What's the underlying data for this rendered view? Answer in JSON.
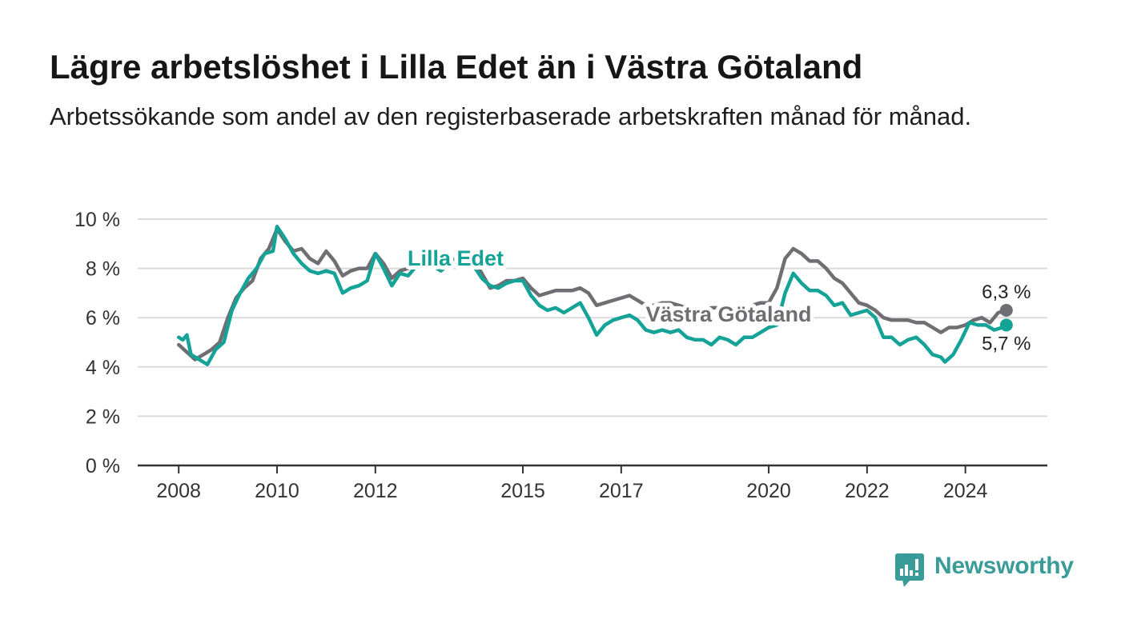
{
  "chart_data": {
    "type": "line",
    "title": "Lägre arbetslöshet i Lilla Edet än i Västra Götaland",
    "subtitle": "Arbetssökande som andel av den registerbaserade arbetskraften månad för månad.",
    "xlabel": "",
    "ylabel": "",
    "ylim": [
      0,
      10
    ],
    "xlim": [
      "2007-03",
      "2025-09"
    ],
    "grid": true,
    "legend": "direct labels on lines",
    "y_ticks": [
      {
        "value": 10,
        "label": "10 %"
      },
      {
        "value": 8,
        "label": "8 %"
      },
      {
        "value": 6,
        "label": "6 %"
      },
      {
        "value": 4,
        "label": "4 %"
      },
      {
        "value": 2,
        "label": "2 %"
      },
      {
        "value": 0,
        "label": "0 %"
      }
    ],
    "x_ticks": [
      {
        "value": "2008-01",
        "label": "2008"
      },
      {
        "value": "2010-01",
        "label": "2010"
      },
      {
        "value": "2012-01",
        "label": "2012"
      },
      {
        "value": "2015-01",
        "label": "2015"
      },
      {
        "value": "2017-01",
        "label": "2017"
      },
      {
        "value": "2020-01",
        "label": "2020"
      },
      {
        "value": "2022-01",
        "label": "2022"
      },
      {
        "value": "2024-01",
        "label": "2024"
      }
    ],
    "series": [
      {
        "name": "Lilla Edet",
        "color": "#14a396",
        "end_label": "5,7 %",
        "end_value": 5.7,
        "points": [
          [
            "2008-01",
            5.2
          ],
          [
            "2008-02",
            5.1
          ],
          [
            "2008-03",
            5.3
          ],
          [
            "2008-04",
            4.5
          ],
          [
            "2008-06",
            4.3
          ],
          [
            "2008-08",
            4.1
          ],
          [
            "2008-10",
            4.7
          ],
          [
            "2008-12",
            5.0
          ],
          [
            "2009-02",
            6.3
          ],
          [
            "2009-04",
            7.0
          ],
          [
            "2009-06",
            7.6
          ],
          [
            "2009-08",
            8.0
          ],
          [
            "2009-10",
            8.6
          ],
          [
            "2009-12",
            8.7
          ],
          [
            "2010-01",
            9.7
          ],
          [
            "2010-03",
            9.2
          ],
          [
            "2010-05",
            8.6
          ],
          [
            "2010-07",
            8.2
          ],
          [
            "2010-09",
            7.9
          ],
          [
            "2010-11",
            7.8
          ],
          [
            "2011-01",
            7.9
          ],
          [
            "2011-03",
            7.8
          ],
          [
            "2011-05",
            7.0
          ],
          [
            "2011-07",
            7.2
          ],
          [
            "2011-09",
            7.3
          ],
          [
            "2011-11",
            7.5
          ],
          [
            "2012-01",
            8.6
          ],
          [
            "2012-03",
            8.0
          ],
          [
            "2012-05",
            7.3
          ],
          [
            "2012-07",
            7.8
          ],
          [
            "2012-09",
            7.7
          ],
          [
            "2012-11",
            8.1
          ],
          [
            "2013-01",
            8.2
          ],
          [
            "2013-03",
            8.1
          ],
          [
            "2013-05",
            7.9
          ],
          [
            "2013-07",
            8.2
          ],
          [
            "2013-09",
            8.3
          ],
          [
            "2013-11",
            8.2
          ],
          [
            "2014-01",
            8.1
          ],
          [
            "2014-03",
            7.6
          ],
          [
            "2014-05",
            7.3
          ],
          [
            "2014-07",
            7.2
          ],
          [
            "2014-09",
            7.4
          ],
          [
            "2014-11",
            7.5
          ],
          [
            "2015-01",
            7.5
          ],
          [
            "2015-03",
            6.9
          ],
          [
            "2015-05",
            6.5
          ],
          [
            "2015-07",
            6.3
          ],
          [
            "2015-09",
            6.4
          ],
          [
            "2015-11",
            6.2
          ],
          [
            "2016-01",
            6.4
          ],
          [
            "2016-03",
            6.6
          ],
          [
            "2016-05",
            6.0
          ],
          [
            "2016-07",
            5.3
          ],
          [
            "2016-09",
            5.7
          ],
          [
            "2016-11",
            5.9
          ],
          [
            "2017-01",
            6.0
          ],
          [
            "2017-03",
            6.1
          ],
          [
            "2017-05",
            5.9
          ],
          [
            "2017-07",
            5.5
          ],
          [
            "2017-09",
            5.4
          ],
          [
            "2017-11",
            5.5
          ],
          [
            "2018-01",
            5.4
          ],
          [
            "2018-03",
            5.5
          ],
          [
            "2018-05",
            5.2
          ],
          [
            "2018-07",
            5.1
          ],
          [
            "2018-09",
            5.1
          ],
          [
            "2018-11",
            4.9
          ],
          [
            "2019-01",
            5.2
          ],
          [
            "2019-03",
            5.1
          ],
          [
            "2019-05",
            4.9
          ],
          [
            "2019-07",
            5.2
          ],
          [
            "2019-09",
            5.2
          ],
          [
            "2019-11",
            5.4
          ],
          [
            "2020-01",
            5.6
          ],
          [
            "2020-03",
            5.7
          ],
          [
            "2020-05",
            7.0
          ],
          [
            "2020-07",
            7.8
          ],
          [
            "2020-09",
            7.4
          ],
          [
            "2020-11",
            7.1
          ],
          [
            "2021-01",
            7.1
          ],
          [
            "2021-03",
            6.9
          ],
          [
            "2021-05",
            6.5
          ],
          [
            "2021-07",
            6.6
          ],
          [
            "2021-09",
            6.1
          ],
          [
            "2021-11",
            6.2
          ],
          [
            "2022-01",
            6.3
          ],
          [
            "2022-03",
            6.0
          ],
          [
            "2022-05",
            5.2
          ],
          [
            "2022-07",
            5.2
          ],
          [
            "2022-09",
            4.9
          ],
          [
            "2022-11",
            5.1
          ],
          [
            "2023-01",
            5.2
          ],
          [
            "2023-03",
            4.9
          ],
          [
            "2023-05",
            4.5
          ],
          [
            "2023-07",
            4.4
          ],
          [
            "2023-08",
            4.2
          ],
          [
            "2023-10",
            4.5
          ],
          [
            "2023-12",
            5.1
          ],
          [
            "2024-02",
            5.8
          ],
          [
            "2024-04",
            5.7
          ],
          [
            "2024-06",
            5.7
          ],
          [
            "2024-08",
            5.5
          ],
          [
            "2024-10",
            5.6
          ],
          [
            "2024-11",
            5.7
          ]
        ]
      },
      {
        "name": "Västra Götaland",
        "color": "#6e6e73",
        "end_label": "6,3 %",
        "end_value": 6.3,
        "points": [
          [
            "2008-01",
            4.9
          ],
          [
            "2008-03",
            4.6
          ],
          [
            "2008-05",
            4.3
          ],
          [
            "2008-07",
            4.5
          ],
          [
            "2008-09",
            4.7
          ],
          [
            "2008-11",
            5.0
          ],
          [
            "2009-01",
            6.0
          ],
          [
            "2009-03",
            6.8
          ],
          [
            "2009-05",
            7.2
          ],
          [
            "2009-07",
            7.5
          ],
          [
            "2009-09",
            8.4
          ],
          [
            "2009-11",
            8.8
          ],
          [
            "2010-01",
            9.6
          ],
          [
            "2010-03",
            9.1
          ],
          [
            "2010-05",
            8.7
          ],
          [
            "2010-07",
            8.8
          ],
          [
            "2010-09",
            8.4
          ],
          [
            "2010-11",
            8.2
          ],
          [
            "2011-01",
            8.7
          ],
          [
            "2011-03",
            8.3
          ],
          [
            "2011-05",
            7.7
          ],
          [
            "2011-07",
            7.9
          ],
          [
            "2011-09",
            8.0
          ],
          [
            "2011-11",
            8.0
          ],
          [
            "2012-01",
            8.6
          ],
          [
            "2012-03",
            8.2
          ],
          [
            "2012-05",
            7.6
          ],
          [
            "2012-07",
            7.9
          ],
          [
            "2012-09",
            8.0
          ],
          [
            "2012-11",
            8.2
          ],
          [
            "2013-01",
            8.4
          ],
          [
            "2013-03",
            8.2
          ],
          [
            "2013-05",
            8.0
          ],
          [
            "2013-07",
            8.3
          ],
          [
            "2013-09",
            8.4
          ],
          [
            "2013-11",
            8.3
          ],
          [
            "2014-01",
            8.3
          ],
          [
            "2014-03",
            7.8
          ],
          [
            "2014-05",
            7.2
          ],
          [
            "2014-07",
            7.3
          ],
          [
            "2014-09",
            7.5
          ],
          [
            "2014-11",
            7.5
          ],
          [
            "2015-01",
            7.6
          ],
          [
            "2015-03",
            7.2
          ],
          [
            "2015-05",
            6.9
          ],
          [
            "2015-07",
            7.0
          ],
          [
            "2015-09",
            7.1
          ],
          [
            "2015-11",
            7.1
          ],
          [
            "2016-01",
            7.1
          ],
          [
            "2016-03",
            7.2
          ],
          [
            "2016-05",
            7.0
          ],
          [
            "2016-07",
            6.5
          ],
          [
            "2016-09",
            6.6
          ],
          [
            "2016-11",
            6.7
          ],
          [
            "2017-01",
            6.8
          ],
          [
            "2017-03",
            6.9
          ],
          [
            "2017-05",
            6.7
          ],
          [
            "2017-07",
            6.5
          ],
          [
            "2017-09",
            6.5
          ],
          [
            "2017-11",
            6.6
          ],
          [
            "2018-01",
            6.6
          ],
          [
            "2018-03",
            6.5
          ],
          [
            "2018-05",
            6.4
          ],
          [
            "2018-07",
            6.3
          ],
          [
            "2018-09",
            6.3
          ],
          [
            "2018-11",
            6.4
          ],
          [
            "2019-01",
            6.4
          ],
          [
            "2019-03",
            6.3
          ],
          [
            "2019-05",
            6.3
          ],
          [
            "2019-07",
            6.4
          ],
          [
            "2019-09",
            6.5
          ],
          [
            "2019-11",
            6.6
          ],
          [
            "2020-01",
            6.6
          ],
          [
            "2020-03",
            7.2
          ],
          [
            "2020-05",
            8.4
          ],
          [
            "2020-07",
            8.8
          ],
          [
            "2020-09",
            8.6
          ],
          [
            "2020-11",
            8.3
          ],
          [
            "2021-01",
            8.3
          ],
          [
            "2021-03",
            8.0
          ],
          [
            "2021-05",
            7.6
          ],
          [
            "2021-07",
            7.4
          ],
          [
            "2021-09",
            7.0
          ],
          [
            "2021-11",
            6.6
          ],
          [
            "2022-01",
            6.5
          ],
          [
            "2022-03",
            6.3
          ],
          [
            "2022-05",
            6.0
          ],
          [
            "2022-07",
            5.9
          ],
          [
            "2022-09",
            5.9
          ],
          [
            "2022-11",
            5.9
          ],
          [
            "2023-01",
            5.8
          ],
          [
            "2023-03",
            5.8
          ],
          [
            "2023-05",
            5.6
          ],
          [
            "2023-07",
            5.4
          ],
          [
            "2023-09",
            5.6
          ],
          [
            "2023-11",
            5.6
          ],
          [
            "2024-01",
            5.7
          ],
          [
            "2024-03",
            5.9
          ],
          [
            "2024-05",
            6.0
          ],
          [
            "2024-07",
            5.8
          ],
          [
            "2024-09",
            6.2
          ],
          [
            "2024-11",
            6.3
          ]
        ]
      }
    ]
  },
  "brand": {
    "name": "Newsworthy",
    "color": "#3a9c98",
    "icon": "speech-bubble-chart-icon"
  }
}
